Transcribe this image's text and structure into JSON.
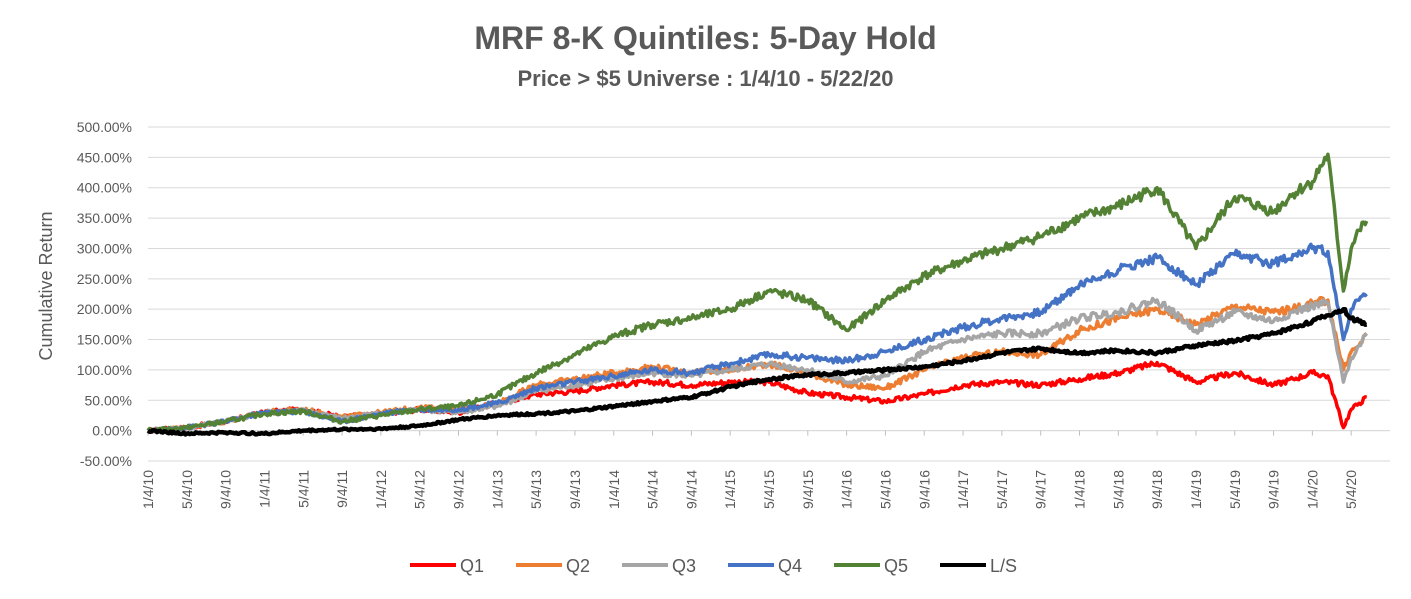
{
  "chart_data": {
    "type": "line",
    "title": "MRF 8-K Quintiles: 5-Day Hold",
    "subtitle": "Price > $5 Universe : 1/4/10 - 5/22/20",
    "xlabel": "",
    "ylabel": "Cumulative Return",
    "ylim": [
      -50,
      500
    ],
    "y_ticks": [
      -50,
      0,
      50,
      100,
      150,
      200,
      250,
      300,
      350,
      400,
      450,
      500
    ],
    "y_tick_labels": [
      "-50.00%",
      "0.00%",
      "50.00%",
      "100.00%",
      "150.00%",
      "200.00%",
      "250.00%",
      "300.00%",
      "350.00%",
      "400.00%",
      "450.00%",
      "500.00%"
    ],
    "x_tick_labels": [
      "1/4/10",
      "5/4/10",
      "9/4/10",
      "1/4/11",
      "5/4/11",
      "9/4/11",
      "1/4/12",
      "5/4/12",
      "9/4/12",
      "1/4/13",
      "5/4/13",
      "9/4/13",
      "1/4/14",
      "5/4/14",
      "9/4/14",
      "1/4/15",
      "5/4/15",
      "9/4/15",
      "1/4/16",
      "5/4/16",
      "9/4/16",
      "1/4/17",
      "5/4/17",
      "9/4/17",
      "1/4/18",
      "5/4/18",
      "9/4/18",
      "1/4/19",
      "5/4/19",
      "9/4/19",
      "1/4/20",
      "5/4/20"
    ],
    "grid": true,
    "legend_position": "bottom",
    "series": [
      {
        "name": "Q1",
        "color": "#FF0000",
        "x": [
          0,
          1,
          2,
          3,
          4,
          5,
          6,
          7,
          8,
          9,
          10,
          11,
          12,
          13,
          14,
          15,
          16,
          17,
          18,
          19,
          20,
          21,
          22,
          23,
          24,
          25,
          26,
          27,
          28,
          29,
          29.5,
          30,
          30.4,
          30.8,
          31,
          31.2,
          31.4
        ],
        "values": [
          0,
          5,
          15,
          30,
          35,
          22,
          28,
          35,
          30,
          45,
          60,
          65,
          75,
          80,
          75,
          80,
          80,
          62,
          55,
          48,
          60,
          75,
          80,
          75,
          85,
          95,
          112,
          80,
          95,
          75,
          85,
          95,
          90,
          5,
          35,
          45,
          55
        ]
      },
      {
        "name": "Q2",
        "color": "#ED7D31",
        "x": [
          0,
          1,
          2,
          3,
          4,
          5,
          6,
          7,
          8,
          9,
          10,
          11,
          12,
          13,
          14,
          15,
          16,
          17,
          18,
          19,
          20,
          21,
          22,
          23,
          24,
          25,
          26,
          27,
          28,
          29,
          29.5,
          30,
          30.4,
          30.8,
          31,
          31.2,
          31.4
        ],
        "values": [
          0,
          5,
          15,
          30,
          35,
          22,
          30,
          38,
          35,
          45,
          75,
          85,
          95,
          105,
          95,
          100,
          110,
          95,
          75,
          70,
          100,
          120,
          130,
          125,
          165,
          185,
          200,
          175,
          205,
          195,
          200,
          210,
          215,
          100,
          130,
          140,
          160
        ]
      },
      {
        "name": "Q3",
        "color": "#A5A5A5",
        "x": [
          0,
          1,
          2,
          3,
          4,
          5,
          6,
          7,
          8,
          9,
          10,
          11,
          12,
          13,
          14,
          15,
          16,
          17,
          18,
          19,
          20,
          21,
          22,
          23,
          24,
          25,
          26,
          27,
          28,
          29,
          29.5,
          30,
          30.4,
          30.8,
          31,
          31.2,
          31.4
        ],
        "values": [
          0,
          5,
          15,
          30,
          32,
          20,
          28,
          35,
          30,
          40,
          65,
          75,
          85,
          95,
          90,
          100,
          110,
          100,
          80,
          90,
          130,
          150,
          160,
          160,
          185,
          195,
          215,
          165,
          195,
          180,
          195,
          205,
          210,
          80,
          120,
          140,
          160
        ]
      },
      {
        "name": "Q4",
        "color": "#4472C4",
        "x": [
          0,
          1,
          2,
          3,
          4,
          5,
          6,
          7,
          8,
          9,
          10,
          11,
          12,
          13,
          14,
          15,
          16,
          17,
          18,
          19,
          20,
          21,
          22,
          23,
          24,
          25,
          26,
          27,
          28,
          29,
          29.5,
          30,
          30.4,
          30.8,
          31,
          31.2,
          31.4
        ],
        "values": [
          0,
          5,
          15,
          30,
          32,
          15,
          28,
          35,
          35,
          45,
          70,
          80,
          90,
          100,
          95,
          110,
          125,
          120,
          115,
          130,
          150,
          170,
          185,
          195,
          240,
          265,
          285,
          240,
          290,
          275,
          290,
          300,
          295,
          150,
          200,
          215,
          225
        ]
      },
      {
        "name": "Q5",
        "color": "#548235",
        "x": [
          0,
          1,
          2,
          3,
          4,
          5,
          6,
          7,
          8,
          9,
          10,
          11,
          12,
          13,
          14,
          15,
          16,
          17,
          18,
          19,
          20,
          21,
          22,
          23,
          24,
          25,
          26,
          27,
          28,
          29,
          29.5,
          30,
          30.4,
          30.8,
          31,
          31.2,
          31.4
        ],
        "values": [
          0,
          5,
          15,
          28,
          32,
          15,
          25,
          35,
          40,
          60,
          95,
          125,
          155,
          175,
          185,
          200,
          230,
          215,
          165,
          215,
          255,
          280,
          300,
          320,
          350,
          370,
          400,
          300,
          385,
          360,
          390,
          410,
          455,
          230,
          300,
          330,
          345
        ]
      },
      {
        "name": "L/S",
        "color": "#000000",
        "x": [
          0,
          1,
          2,
          3,
          4,
          5,
          6,
          7,
          8,
          9,
          10,
          11,
          12,
          13,
          14,
          15,
          16,
          17,
          18,
          19,
          20,
          21,
          22,
          23,
          24,
          25,
          26,
          27,
          28,
          29,
          29.5,
          30,
          30.4,
          30.8,
          31,
          31.2,
          31.4
        ],
        "values": [
          0,
          -5,
          -3,
          -5,
          0,
          2,
          3,
          8,
          18,
          25,
          28,
          32,
          40,
          48,
          55,
          72,
          85,
          92,
          95,
          100,
          105,
          115,
          128,
          135,
          128,
          132,
          128,
          140,
          148,
          160,
          170,
          180,
          190,
          200,
          185,
          180,
          175
        ]
      }
    ]
  }
}
